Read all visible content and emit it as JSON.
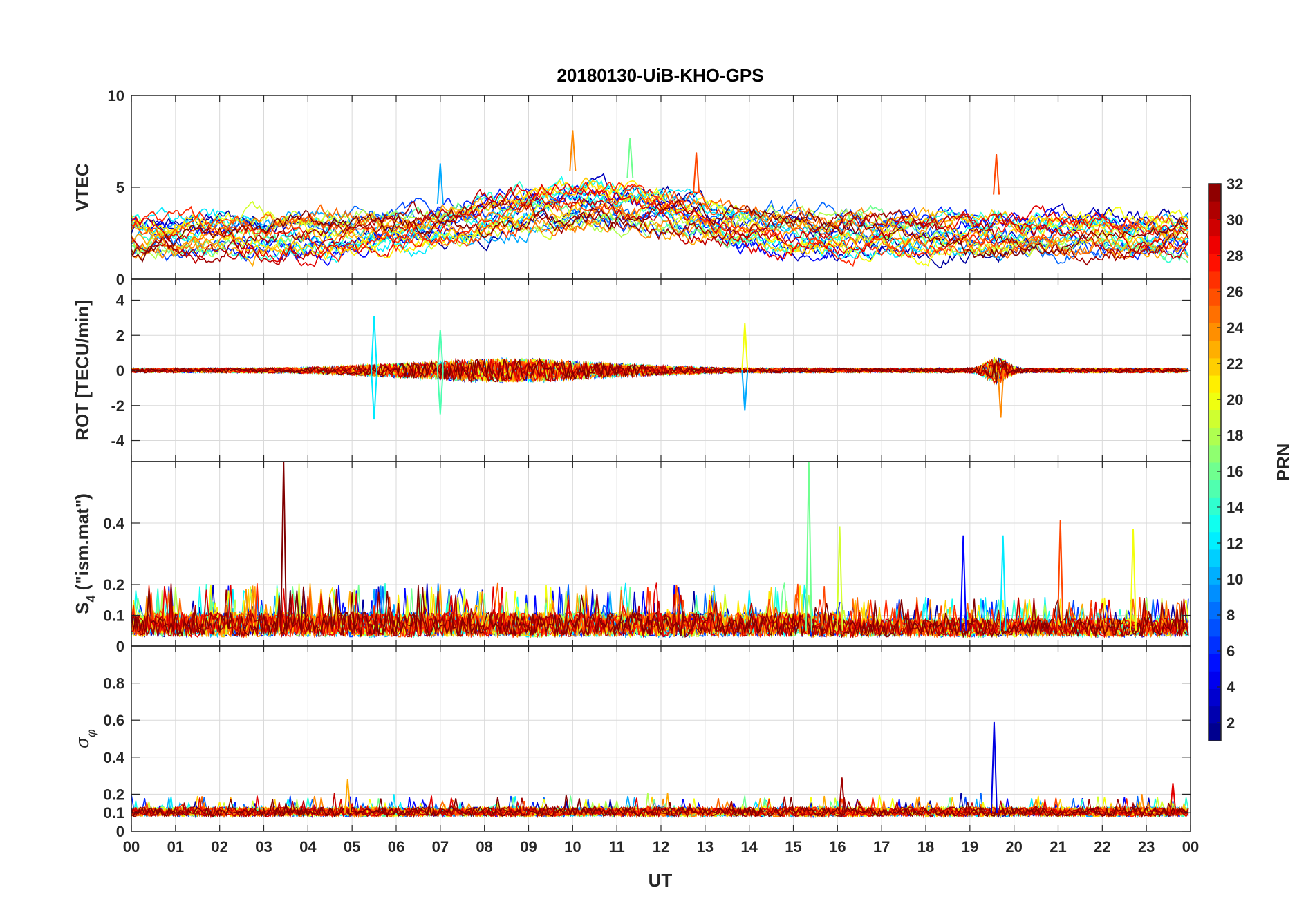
{
  "chart_data": {
    "type": "line",
    "title": "20180130-UiB-KHO-GPS",
    "xlabel": "UT",
    "x_tick_labels": [
      "00",
      "01",
      "02",
      "03",
      "04",
      "05",
      "06",
      "07",
      "08",
      "09",
      "10",
      "11",
      "12",
      "13",
      "14",
      "15",
      "16",
      "17",
      "18",
      "19",
      "20",
      "21",
      "22",
      "23",
      "00"
    ],
    "xlim": [
      0,
      24
    ],
    "colorbar": {
      "label": "PRN",
      "range": [
        1,
        32
      ],
      "tick_labels": [
        "2",
        "4",
        "6",
        "8",
        "10",
        "12",
        "14",
        "16",
        "18",
        "20",
        "22",
        "24",
        "26",
        "28",
        "30",
        "32"
      ],
      "colormap": "jet"
    },
    "panels": [
      {
        "name": "vtec",
        "ylabel": "VTEC",
        "ylim": [
          0,
          10
        ],
        "y_tick_labels": [
          "0",
          "5",
          "10"
        ],
        "y_ticks": [
          0,
          5,
          10
        ],
        "series_description": "VTEC per PRN, values mostly 1-8 TECU",
        "highlights": [
          {
            "prn": 24,
            "t": 10.0,
            "value": 8.1
          },
          {
            "prn": 16,
            "t": 11.3,
            "value": 7.7
          },
          {
            "prn": 10,
            "t": 7.0,
            "value": 6.3
          },
          {
            "prn": 26,
            "t": 12.8,
            "value": 6.9
          },
          {
            "prn": 26,
            "t": 19.6,
            "value": 6.8
          }
        ]
      },
      {
        "name": "rot",
        "ylabel": "ROT [TECU/min]",
        "ylim": [
          -5.2,
          5.2
        ],
        "y_tick_labels": [
          "-4",
          "-2",
          "0",
          "2",
          "4"
        ],
        "y_ticks": [
          -4,
          -2,
          0,
          2,
          4
        ],
        "highlights": [
          {
            "prn": 12,
            "t": 5.5,
            "value": 3.1
          },
          {
            "prn": 12,
            "t": 5.5,
            "value": -2.8
          },
          {
            "prn": 15,
            "t": 7.0,
            "value": 2.3
          },
          {
            "prn": 15,
            "t": 7.0,
            "value": -2.5
          },
          {
            "prn": 20,
            "t": 13.9,
            "value": 2.7
          },
          {
            "prn": 10,
            "t": 13.9,
            "value": -2.3
          },
          {
            "prn": 24,
            "t": 19.7,
            "value": -2.7
          }
        ]
      },
      {
        "name": "s4",
        "ylabel_main": "S",
        "ylabel_sub": "4",
        "ylabel_rest": " (\"ism.mat\")",
        "ylim": [
          0,
          0.6
        ],
        "y_tick_labels": [
          "0",
          "0.1",
          "0.2",
          "0.4"
        ],
        "y_ticks": [
          0,
          0.1,
          0.2,
          0.4
        ],
        "highlights": [
          {
            "prn": 32,
            "t": 3.45,
            "value": 0.6
          },
          {
            "prn": 16,
            "t": 15.35,
            "value": 0.6
          },
          {
            "prn": 19,
            "t": 16.05,
            "value": 0.39
          },
          {
            "prn": 5,
            "t": 18.85,
            "value": 0.36
          },
          {
            "prn": 12,
            "t": 19.75,
            "value": 0.36
          },
          {
            "prn": 26,
            "t": 21.05,
            "value": 0.41
          },
          {
            "prn": 20,
            "t": 22.7,
            "value": 0.38
          }
        ]
      },
      {
        "name": "sigma_phi",
        "ylabel_main": "σ",
        "ylabel_sub": "φ",
        "ylim": [
          0,
          1
        ],
        "y_tick_labels": [
          "0",
          "0.1",
          "0.2",
          "0.4",
          "0.6",
          "0.8"
        ],
        "y_ticks": [
          0,
          0.1,
          0.2,
          0.4,
          0.6,
          0.8
        ],
        "highlights": [
          {
            "prn": 4,
            "t": 19.55,
            "value": 0.59
          },
          {
            "prn": 23,
            "t": 4.9,
            "value": 0.28
          },
          {
            "prn": 31,
            "t": 16.1,
            "value": 0.29
          },
          {
            "prn": 29,
            "t": 23.6,
            "value": 0.26
          }
        ]
      }
    ]
  }
}
